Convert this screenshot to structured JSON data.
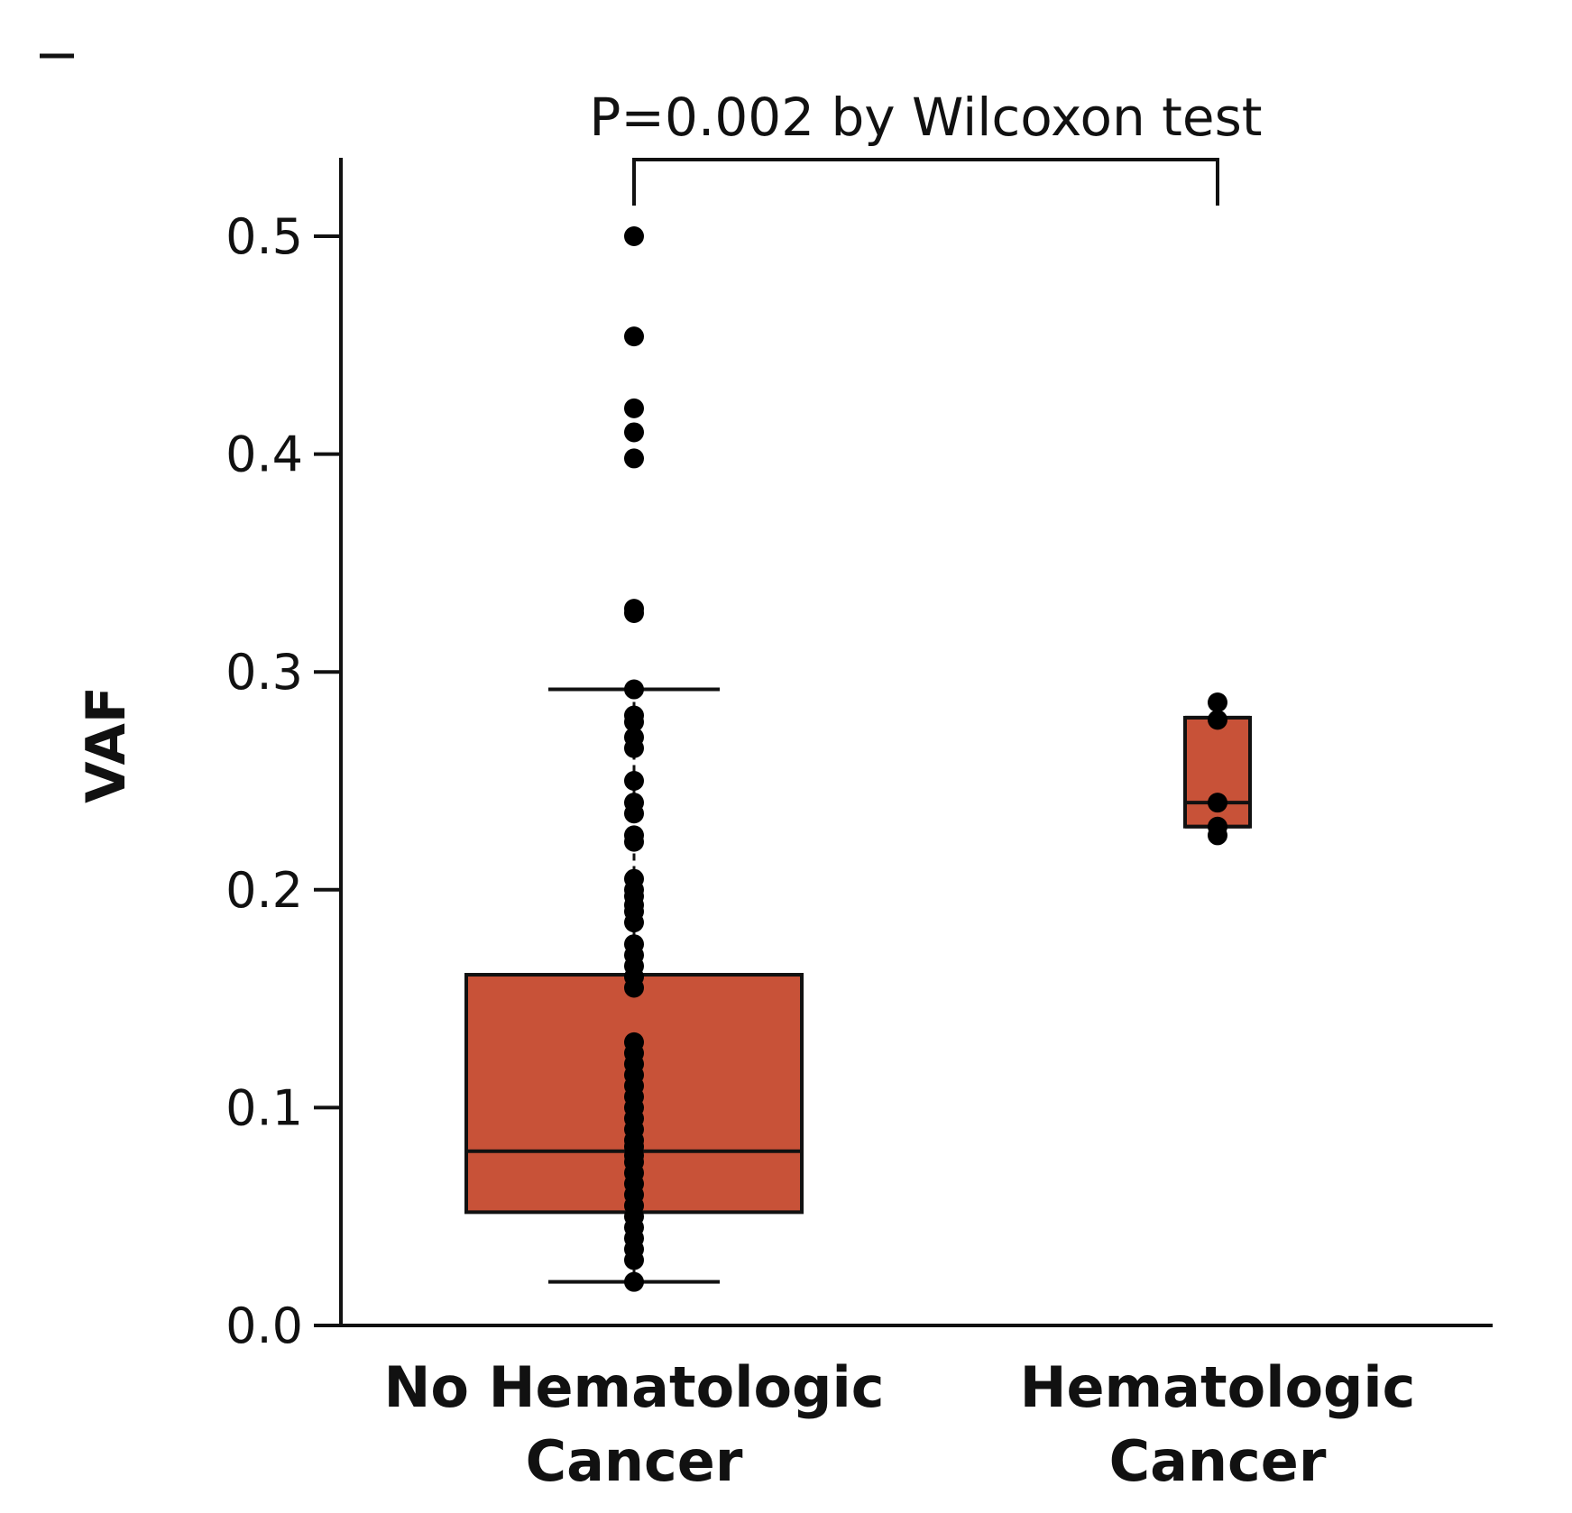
{
  "chart_data": {
    "type": "box",
    "ylabel": "VAF",
    "ylim": [
      0,
      0.53
    ],
    "yticks": [
      "0.0",
      "0.1",
      "0.2",
      "0.3",
      "0.4",
      "0.5"
    ],
    "yticks_values": [
      0,
      0.1,
      0.2,
      0.3,
      0.4,
      0.5
    ],
    "groups": [
      {
        "label_lines": [
          "No Hematologic",
          "Cancer"
        ],
        "whisker_low": 0.02,
        "q1": 0.052,
        "median": 0.08,
        "q3": 0.161,
        "whisker_high": 0.292,
        "points": [
          0.5,
          0.454,
          0.421,
          0.41,
          0.398,
          0.329,
          0.327,
          0.292,
          0.28,
          0.277,
          0.27,
          0.265,
          0.25,
          0.24,
          0.235,
          0.225,
          0.222,
          0.205,
          0.2,
          0.197,
          0.193,
          0.19,
          0.185,
          0.175,
          0.17,
          0.165,
          0.16,
          0.155,
          0.13,
          0.125,
          0.12,
          0.115,
          0.11,
          0.105,
          0.1,
          0.095,
          0.09,
          0.085,
          0.082,
          0.078,
          0.075,
          0.07,
          0.065,
          0.06,
          0.055,
          0.05,
          0.045,
          0.04,
          0.035,
          0.03,
          0.02
        ]
      },
      {
        "label_lines": [
          "Hematologic",
          "Cancer"
        ],
        "whisker_low": 0.229,
        "q1": 0.229,
        "median": 0.24,
        "q3": 0.279,
        "whisker_high": 0.279,
        "points": [
          0.286,
          0.278,
          0.24,
          0.229,
          0.225
        ]
      }
    ],
    "annotation": "P=0.002 by Wilcoxon test",
    "colors": {
      "box_fill": "#c85238",
      "stroke": "#111111",
      "point": "#000000"
    }
  }
}
